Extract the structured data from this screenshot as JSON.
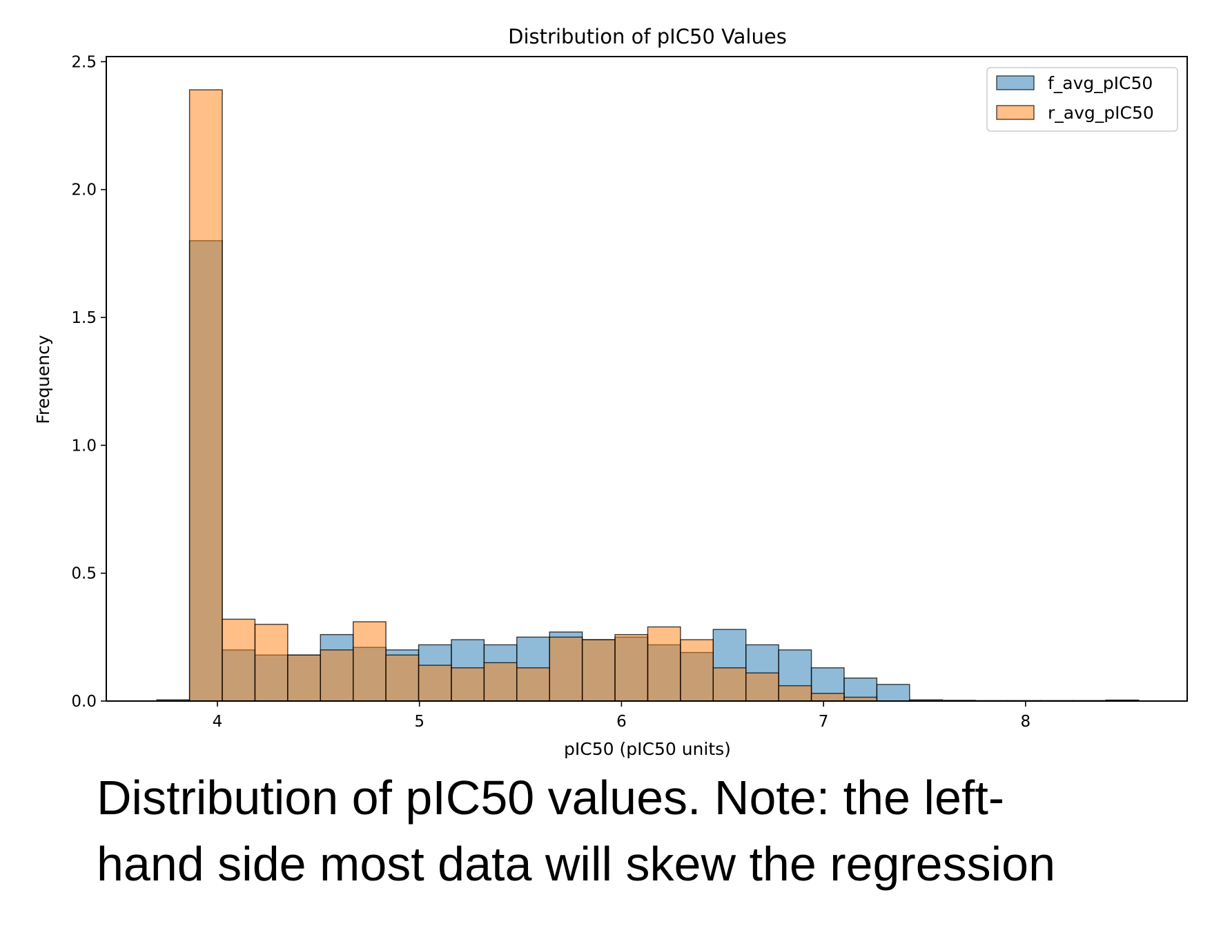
{
  "chart_data": {
    "type": "bar",
    "title": "Distribution of pIC50 Values",
    "xlabel": "pIC50 (pIC50 units)",
    "ylabel": "Frequency",
    "xlim": [
      3.45,
      8.8
    ],
    "ylim": [
      0,
      2.52
    ],
    "xticks": [
      4,
      5,
      6,
      7,
      8
    ],
    "yticks": [
      "0.0",
      "0.5",
      "1.0",
      "1.5",
      "2.0",
      "2.5"
    ],
    "grid": false,
    "legend_position": "top-right",
    "bin_edges": [
      3.7,
      3.862,
      4.024,
      4.186,
      4.348,
      4.51,
      4.672,
      4.834,
      4.996,
      5.158,
      5.32,
      5.482,
      5.644,
      5.806,
      5.968,
      6.13,
      6.292,
      6.454,
      6.616,
      6.778,
      6.94,
      7.102,
      7.264,
      7.426,
      7.588,
      7.75,
      7.912,
      8.074,
      8.236,
      8.398,
      8.56
    ],
    "series": [
      {
        "name": "f_avg_pIC50",
        "color": "#1f77b4",
        "values": [
          0.005,
          1.8,
          0.2,
          0.18,
          0.18,
          0.26,
          0.21,
          0.2,
          0.22,
          0.24,
          0.22,
          0.25,
          0.27,
          0.24,
          0.25,
          0.22,
          0.19,
          0.28,
          0.22,
          0.2,
          0.13,
          0.09,
          0.065,
          0.005,
          0.003,
          0.002,
          0.002,
          0.002,
          0.002,
          0.004
        ]
      },
      {
        "name": "r_avg_pIC50",
        "color": "#ff7f0e",
        "values": [
          0.0,
          2.39,
          0.32,
          0.3,
          0.18,
          0.2,
          0.31,
          0.18,
          0.14,
          0.13,
          0.15,
          0.13,
          0.25,
          0.24,
          0.26,
          0.29,
          0.24,
          0.13,
          0.11,
          0.06,
          0.03,
          0.015,
          0.0,
          0.0,
          0.0,
          0.0,
          0.0,
          0.0,
          0.0,
          0.0
        ]
      }
    ]
  },
  "caption": {
    "line1": "Distribution of pIC50 values. Note: the left-",
    "line2": "hand side most data will skew the regression"
  }
}
